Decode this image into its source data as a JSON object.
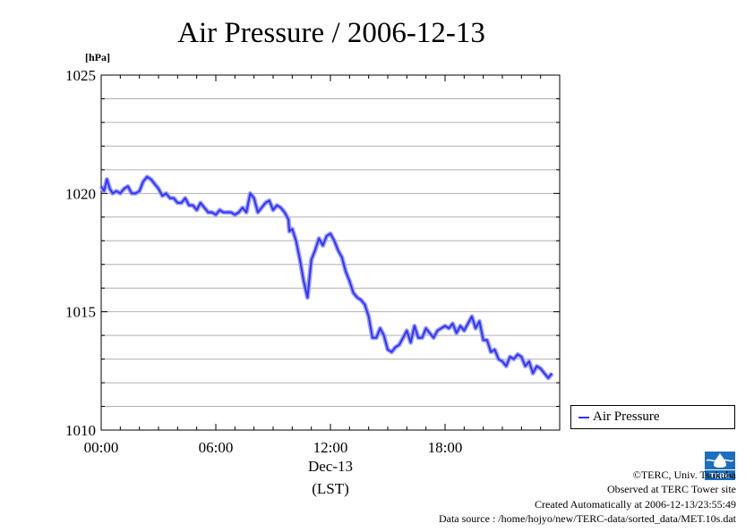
{
  "chart_data": {
    "type": "line",
    "title": "Air Pressure / 2006-12-13",
    "ylabel": "[hPa]",
    "xlabel": "(LST)",
    "x_date_label": "Dec-13",
    "ylim": [
      1010,
      1025
    ],
    "xlim": [
      0,
      24
    ],
    "yticks": [
      1010,
      1015,
      1020,
      1025
    ],
    "xticks": [
      {
        "value": 0,
        "label": "00:00"
      },
      {
        "value": 6,
        "label": "06:00"
      },
      {
        "value": 12,
        "label": "12:00"
      },
      {
        "value": 18,
        "label": "18:00"
      }
    ],
    "grid": true,
    "legend_position": "right",
    "series": [
      {
        "name": "Air Pressure",
        "color": "#3333ff",
        "x": [
          0.0,
          0.15,
          0.3,
          0.45,
          0.6,
          0.8,
          1.0,
          1.2,
          1.4,
          1.6,
          1.8,
          2.0,
          2.2,
          2.4,
          2.6,
          2.8,
          3.0,
          3.2,
          3.4,
          3.6,
          3.8,
          4.0,
          4.2,
          4.4,
          4.6,
          4.8,
          5.0,
          5.2,
          5.4,
          5.6,
          5.8,
          6.0,
          6.2,
          6.4,
          6.6,
          6.8,
          7.0,
          7.2,
          7.4,
          7.6,
          7.8,
          8.0,
          8.2,
          8.4,
          8.6,
          8.8,
          9.0,
          9.2,
          9.4,
          9.6,
          9.8,
          9.85,
          10.0,
          10.2,
          10.4,
          10.6,
          10.8,
          11.0,
          11.2,
          11.4,
          11.6,
          11.8,
          12.0,
          12.2,
          12.4,
          12.6,
          12.8,
          13.0,
          13.2,
          13.4,
          13.6,
          13.8,
          14.0,
          14.2,
          14.4,
          14.6,
          14.8,
          15.0,
          15.2,
          15.4,
          15.6,
          15.8,
          16.0,
          16.2,
          16.4,
          16.6,
          16.8,
          17.0,
          17.2,
          17.4,
          17.6,
          17.8,
          18.0,
          18.2,
          18.4,
          18.6,
          18.8,
          19.0,
          19.2,
          19.4,
          19.6,
          19.8,
          20.0,
          20.2,
          20.4,
          20.6,
          20.8,
          21.0,
          21.2,
          21.4,
          21.6,
          21.8,
          22.0,
          22.2,
          22.4,
          22.6,
          22.8,
          23.0,
          23.2,
          23.4,
          23.6
        ],
        "values": [
          1020.3,
          1020.1,
          1020.6,
          1020.2,
          1020.0,
          1020.1,
          1020.0,
          1020.2,
          1020.3,
          1020.0,
          1020.0,
          1020.1,
          1020.5,
          1020.7,
          1020.6,
          1020.4,
          1020.2,
          1019.9,
          1020.0,
          1019.8,
          1019.8,
          1019.6,
          1019.6,
          1019.8,
          1019.5,
          1019.5,
          1019.3,
          1019.6,
          1019.4,
          1019.2,
          1019.2,
          1019.1,
          1019.3,
          1019.2,
          1019.2,
          1019.2,
          1019.1,
          1019.2,
          1019.4,
          1019.2,
          1020.0,
          1019.8,
          1019.2,
          1019.4,
          1019.6,
          1019.7,
          1019.3,
          1019.5,
          1019.4,
          1019.2,
          1018.9,
          1018.4,
          1018.5,
          1018.0,
          1017.2,
          1016.3,
          1015.6,
          1017.2,
          1017.6,
          1018.1,
          1017.8,
          1018.2,
          1018.3,
          1018.0,
          1017.6,
          1017.3,
          1016.7,
          1016.3,
          1015.8,
          1015.6,
          1015.5,
          1015.3,
          1014.8,
          1013.9,
          1013.9,
          1014.3,
          1014.0,
          1013.4,
          1013.3,
          1013.5,
          1013.6,
          1013.9,
          1014.2,
          1013.7,
          1014.4,
          1013.9,
          1013.9,
          1014.3,
          1014.1,
          1013.9,
          1014.2,
          1014.3,
          1014.4,
          1014.3,
          1014.5,
          1014.1,
          1014.4,
          1014.2,
          1014.5,
          1014.8,
          1014.3,
          1014.6,
          1013.8,
          1013.8,
          1013.3,
          1013.4,
          1013.0,
          1012.9,
          1012.7,
          1013.1,
          1013.0,
          1013.2,
          1013.1,
          1012.7,
          1012.9,
          1012.4,
          1012.7,
          1012.6,
          1012.4,
          1012.2,
          1012.4
        ]
      }
    ]
  },
  "footer": {
    "copyright": "©TERC, Univ. Tsukuba",
    "observed": "Observed at TERC Tower site",
    "created": "Created Automatically at 2006-12-13/23:55:49",
    "source": "Data source : /home/hojyo/new/TERC-data/sorted_data/MET.10s.dat",
    "logo_text": "TERC"
  }
}
